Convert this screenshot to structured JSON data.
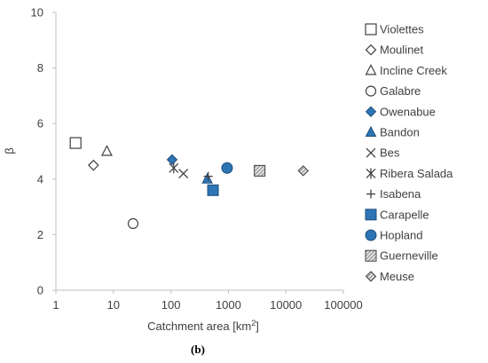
{
  "chart_data": {
    "type": "scatter",
    "x_scale": "log",
    "xlabel_prefix": "Catchment area [km",
    "xlabel_sup": "2",
    "xlabel_suffix": "]",
    "ylabel": "β",
    "xlim": [
      1,
      100000
    ],
    "ylim": [
      0,
      10
    ],
    "x_tick_labels": [
      "1",
      "10",
      "100",
      "1000",
      "10000",
      "100000"
    ],
    "y_tick_labels": [
      "0",
      "2",
      "4",
      "6",
      "8",
      "10"
    ],
    "grid": false,
    "legend_position": "right",
    "panel_label": "(b)",
    "series": [
      {
        "name": "Violettes",
        "marker": "square-open",
        "x": 2.2,
        "y": 5.3
      },
      {
        "name": "Moulinet",
        "marker": "diamond-open",
        "x": 4.5,
        "y": 4.5
      },
      {
        "name": "Incline Creek",
        "marker": "triangle-open",
        "x": 7.7,
        "y": 5.0
      },
      {
        "name": "Galabre",
        "marker": "circle-open",
        "x": 22,
        "y": 2.4
      },
      {
        "name": "Owenabue",
        "marker": "diamond-filled",
        "x": 105,
        "y": 4.7
      },
      {
        "name": "Bandon",
        "marker": "triangle-filled",
        "x": 430,
        "y": 4.0
      },
      {
        "name": "Bes",
        "marker": "x",
        "x": 165,
        "y": 4.2
      },
      {
        "name": "Ribera Salada",
        "marker": "star",
        "x": 112,
        "y": 4.4
      },
      {
        "name": "Isabena",
        "marker": "plus",
        "x": 445,
        "y": 4.1
      },
      {
        "name": "Carapelle",
        "marker": "square-filled",
        "x": 540,
        "y": 3.6
      },
      {
        "name": "Hopland",
        "marker": "circle-filled",
        "x": 950,
        "y": 4.4
      },
      {
        "name": "Guerneville",
        "marker": "square-hatched",
        "x": 3500,
        "y": 4.3
      },
      {
        "name": "Meuse",
        "marker": "diamond-hatched",
        "x": 20000,
        "y": 4.3
      }
    ],
    "colors": {
      "filled": "#2e75b6",
      "filled_stroke": "#1f4e79",
      "open_stroke": "#404040",
      "axis": "#bfbfbf",
      "hatch_fill": "#a6a6a6"
    }
  }
}
